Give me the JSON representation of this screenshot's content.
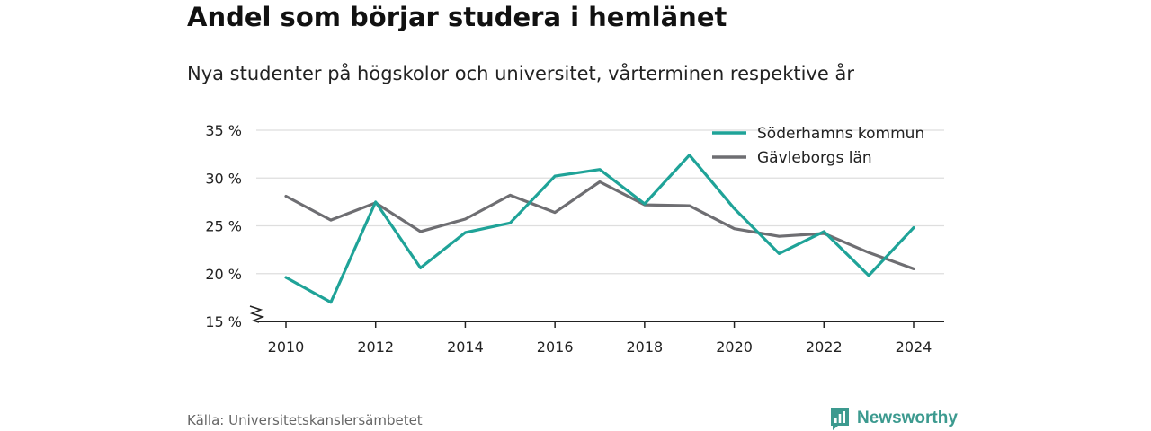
{
  "header": {
    "title": "Andel som börjar studera i hemlänet",
    "subtitle": "Nya studenter på högskolor och universitet, vårterminen respektive år"
  },
  "footer": {
    "source": "Källa: Universitetskanslersämbetet",
    "brand": "Newsworthy"
  },
  "colors": {
    "soderhamn": "#1fa398",
    "gavleborg": "#6e6e72",
    "grid": "#dedede",
    "brand": "#3c9a8f"
  },
  "chart_data": {
    "type": "line",
    "x": [
      2010,
      2011,
      2012,
      2013,
      2014,
      2015,
      2016,
      2017,
      2018,
      2019,
      2020,
      2021,
      2022,
      2023,
      2024
    ],
    "x_ticks": [
      "2010",
      "2012",
      "2014",
      "2016",
      "2018",
      "2020",
      "2022",
      "2024"
    ],
    "y_ticks": [
      "15 %",
      "20 %",
      "25 %",
      "30 %",
      "35 %"
    ],
    "ylim": [
      15,
      35
    ],
    "y_axis_break": true,
    "grid": "horizontal",
    "legend_position": "top-right",
    "series": [
      {
        "name": "Söderhamns kommun",
        "color": "#1fa398",
        "values": [
          19.6,
          17.0,
          27.5,
          20.6,
          24.3,
          25.3,
          30.2,
          30.9,
          27.3,
          32.4,
          26.8,
          22.1,
          24.4,
          19.8,
          24.8
        ]
      },
      {
        "name": "Gävleborgs län",
        "color": "#6e6e72",
        "values": [
          28.1,
          25.6,
          27.4,
          24.4,
          25.7,
          28.2,
          26.4,
          29.6,
          27.2,
          27.1,
          24.7,
          23.9,
          24.2,
          22.2,
          20.5
        ]
      }
    ]
  }
}
